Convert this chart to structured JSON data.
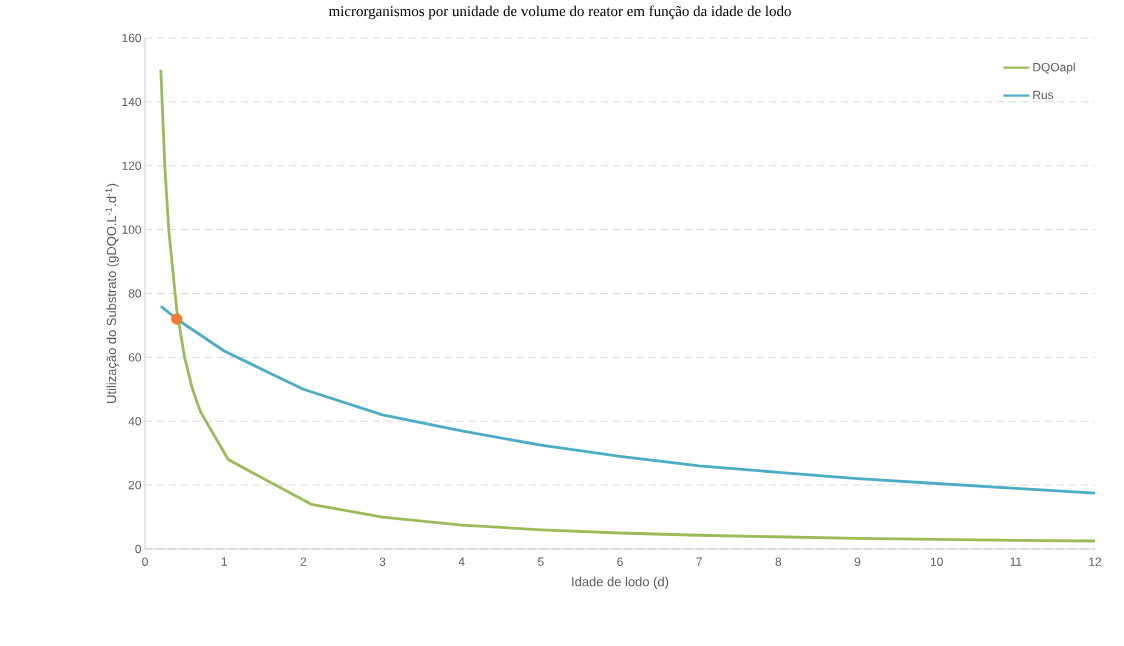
{
  "chart_data": {
    "type": "line",
    "title": "microrganismos por unidade de volume do reator em função da idade de lodo",
    "xlabel": "Idade de lodo (d)",
    "ylabel": "Utilização do Substrato (gDQO.L$^{-1}$.d$^{-1}$)",
    "xlim": [
      0,
      12
    ],
    "ylim": [
      0,
      160
    ],
    "xticks": [
      0,
      1,
      2,
      3,
      4,
      5,
      6,
      7,
      8,
      9,
      10,
      11,
      12
    ],
    "yticks": [
      0,
      20,
      40,
      60,
      80,
      100,
      120,
      140,
      160
    ],
    "grid": "y",
    "legend": "top right",
    "line_style": "solid",
    "series": [
      {
        "name": "DQOapl",
        "color": "#9bbb59",
        "x": [
          0.2,
          0.25,
          0.3,
          0.4,
          0.5,
          0.6,
          0.7,
          1.05,
          2.1,
          3,
          4,
          5,
          6,
          7,
          8,
          9,
          10,
          11,
          12
        ],
        "values": [
          150,
          120,
          100,
          75,
          60,
          50,
          43,
          28,
          14,
          10,
          7.5,
          6,
          5,
          4.3,
          3.8,
          3.3,
          3,
          2.7,
          2.5
        ]
      },
      {
        "name": "Rus",
        "color": "#4bacc6",
        "x": [
          0.2,
          0.4,
          0.7,
          1,
          1.5,
          2,
          3,
          4,
          5,
          6,
          7,
          8,
          9,
          10,
          11,
          12
        ],
        "values": [
          76,
          72,
          67,
          62,
          56,
          50,
          42,
          37,
          32.5,
          29,
          26,
          24,
          22,
          20.5,
          19,
          17.5
        ]
      },
      {
        "type": "scatter",
        "marker": "circle",
        "color": "#ed7d31",
        "x": [
          0.4
        ],
        "values": [
          72
        ]
      }
    ]
  }
}
